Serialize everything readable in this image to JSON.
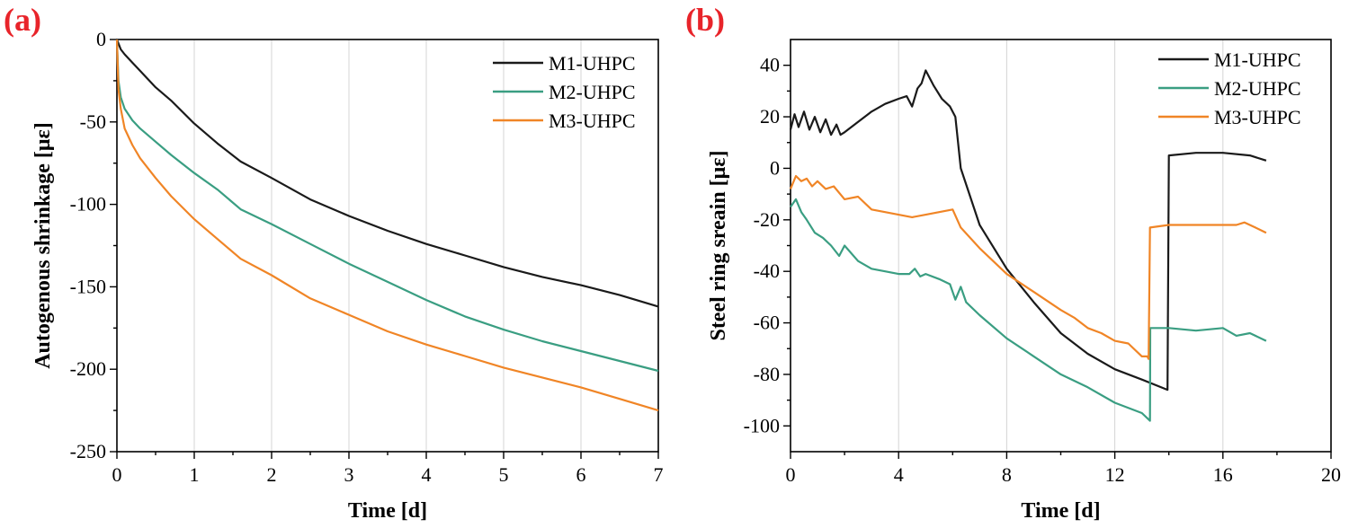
{
  "chart_data": [
    {
      "panel": "(a)",
      "type": "line",
      "title": "",
      "xlabel": "Time [d]",
      "ylabel": "Autogenous shrinkage [με]",
      "xlim": [
        0,
        7
      ],
      "ylim": [
        -250,
        0
      ],
      "xticks": [
        0,
        1,
        2,
        3,
        4,
        5,
        6,
        7
      ],
      "yticks": [
        0,
        -50,
        -100,
        -150,
        -200,
        -250
      ],
      "grid": "vertical",
      "legend": "top-right",
      "series": [
        {
          "name": "M1-UHPC",
          "color": "#1a1a1a",
          "x": [
            0,
            0.05,
            0.1,
            0.2,
            0.3,
            0.5,
            0.7,
            1,
            1.3,
            1.6,
            2,
            2.5,
            3,
            3.5,
            4,
            4.5,
            5,
            5.5,
            6,
            6.5,
            7
          ],
          "y": [
            0,
            -6,
            -9,
            -14,
            -19,
            -29,
            -37,
            -51,
            -63,
            -74,
            -84,
            -97,
            -107,
            -116,
            -124,
            -131,
            -138,
            -144,
            -149,
            -155,
            -162
          ]
        },
        {
          "name": "M2-UHPC",
          "color": "#3a9e82",
          "x": [
            0,
            0.02,
            0.05,
            0.1,
            0.2,
            0.3,
            0.5,
            0.7,
            1,
            1.3,
            1.6,
            2,
            2.5,
            3,
            3.5,
            4,
            4.5,
            5,
            5.5,
            6,
            6.5,
            7
          ],
          "y": [
            0,
            -25,
            -35,
            -42,
            -49,
            -54,
            -62,
            -70,
            -81,
            -91,
            -103,
            -112,
            -124,
            -136,
            -147,
            -158,
            -168,
            -176,
            -183,
            -189,
            -195,
            -201
          ]
        },
        {
          "name": "M3-UHPC",
          "color": "#f08526",
          "x": [
            0,
            0.02,
            0.05,
            0.1,
            0.2,
            0.3,
            0.5,
            0.7,
            1,
            1.3,
            1.6,
            2,
            2.5,
            3,
            3.5,
            4,
            4.5,
            5,
            5.5,
            6,
            6.5,
            7
          ],
          "y": [
            0,
            -30,
            -42,
            -54,
            -64,
            -72,
            -84,
            -95,
            -109,
            -121,
            -133,
            -143,
            -157,
            -167,
            -177,
            -185,
            -192,
            -199,
            -205,
            -211,
            -218,
            -225
          ]
        }
      ]
    },
    {
      "panel": "(b)",
      "type": "line",
      "title": "",
      "xlabel": "Time [d]",
      "ylabel": "Steel ring sreain [με]",
      "xlim": [
        0,
        20
      ],
      "ylim": [
        -110,
        50
      ],
      "xticks": [
        0,
        4,
        8,
        12,
        16,
        20
      ],
      "yticks": [
        40,
        20,
        0,
        -20,
        -40,
        -60,
        -80,
        -100
      ],
      "grid": "vertical",
      "legend": "top-right",
      "series": [
        {
          "name": "M1-UHPC",
          "color": "#1a1a1a",
          "x": [
            0,
            0.15,
            0.3,
            0.5,
            0.7,
            0.9,
            1.1,
            1.3,
            1.5,
            1.7,
            1.85,
            2,
            2.5,
            3,
            3.5,
            4,
            4.3,
            4.5,
            4.7,
            4.85,
            5,
            5.3,
            5.6,
            5.9,
            6.1,
            6.3,
            7,
            8,
            9,
            10,
            11,
            12,
            13,
            13.95,
            14,
            15,
            16,
            17,
            17.6
          ],
          "y": [
            15,
            21,
            16,
            22,
            15,
            20,
            14,
            19,
            13,
            17,
            13,
            14,
            18,
            22,
            25,
            27,
            28,
            24,
            31,
            33,
            38,
            32,
            27,
            24,
            20,
            0,
            -22,
            -39,
            -52,
            -64,
            -72,
            -78,
            -82,
            -86,
            5,
            6,
            6,
            5,
            3
          ]
        },
        {
          "name": "M2-UHPC",
          "color": "#3a9e82",
          "x": [
            0,
            0.2,
            0.4,
            0.6,
            0.9,
            1.2,
            1.5,
            1.8,
            2,
            2.5,
            3,
            3.5,
            4,
            4.4,
            4.6,
            4.8,
            5,
            5.5,
            5.9,
            6.1,
            6.3,
            6.5,
            7,
            8,
            9,
            10,
            11,
            12,
            13,
            13.3,
            13.31,
            14,
            15,
            16,
            16.5,
            17,
            17.6
          ],
          "y": [
            -15,
            -12,
            -17,
            -20,
            -25,
            -27,
            -30,
            -34,
            -30,
            -36,
            -39,
            -40,
            -41,
            -41,
            -39,
            -42,
            -41,
            -43,
            -45,
            -51,
            -46,
            -52,
            -57,
            -66,
            -73,
            -80,
            -85,
            -91,
            -95,
            -98,
            -62,
            -62,
            -63,
            -62,
            -65,
            -64,
            -67
          ]
        },
        {
          "name": "M3-UHPC",
          "color": "#f08526",
          "x": [
            0,
            0.2,
            0.4,
            0.6,
            0.8,
            1,
            1.3,
            1.6,
            2,
            2.5,
            3,
            3.5,
            4,
            4.5,
            5,
            5.5,
            6,
            6.3,
            7,
            8,
            9,
            10,
            10.5,
            11,
            11.5,
            12,
            12.5,
            13,
            13.2,
            13.25,
            13.3,
            14,
            15,
            16,
            16.5,
            16.8,
            17.2,
            17.6
          ],
          "y": [
            -8,
            -3,
            -5,
            -4,
            -7,
            -5,
            -8,
            -7,
            -12,
            -11,
            -16,
            -17,
            -18,
            -19,
            -18,
            -17,
            -16,
            -23,
            -31,
            -41,
            -48,
            -55,
            -58,
            -62,
            -64,
            -67,
            -68,
            -73,
            -73,
            -74,
            -23,
            -22,
            -22,
            -22,
            -22,
            -21,
            -23,
            -25
          ]
        }
      ]
    }
  ]
}
